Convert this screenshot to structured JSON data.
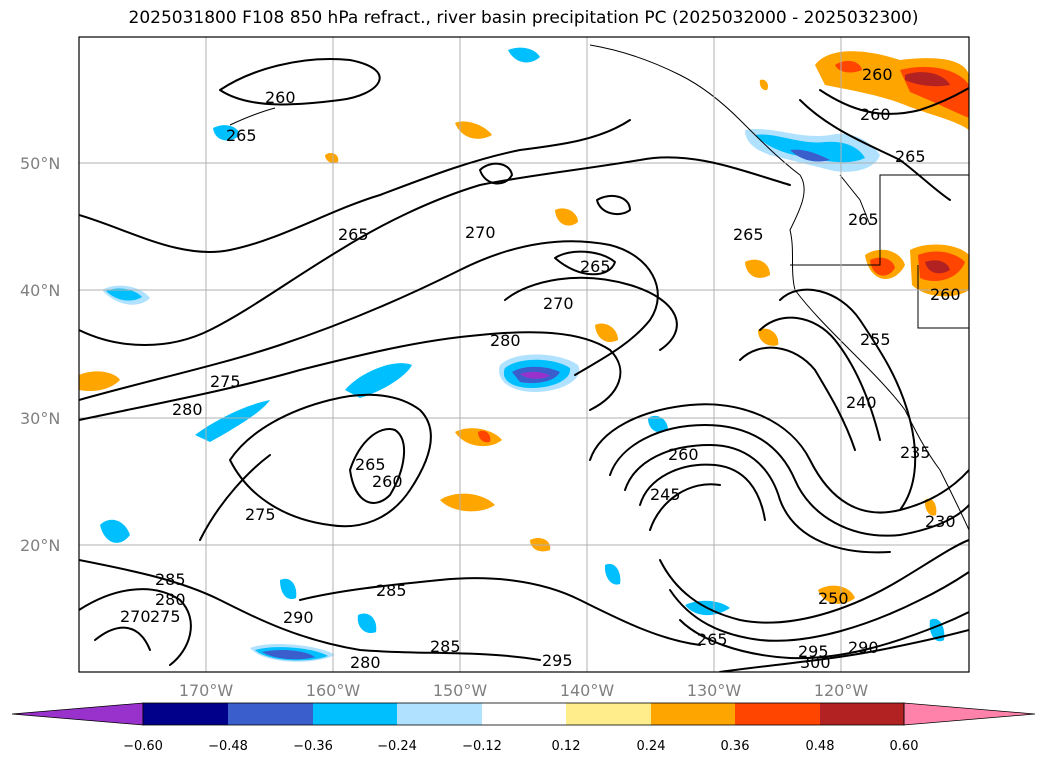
{
  "title": "2025031800 F108 850 hPa refract., river basin precipitation PC (2025032000 - 2025032300)",
  "axes": {
    "lat_labels": [
      "50°N",
      "40°N",
      "30°N",
      "20°N"
    ],
    "lon_labels": [
      "170°W",
      "160°W",
      "150°W",
      "140°W",
      "130°W",
      "120°W"
    ]
  },
  "colorbar": {
    "levels": [
      "−0.60",
      "−0.48",
      "−0.36",
      "−0.24",
      "−0.12",
      "0.12",
      "0.24",
      "0.36",
      "0.48",
      "0.60"
    ],
    "colors": [
      "#9932cc",
      "#00008b",
      "#3a5fcd",
      "#00bfff",
      "#b0e2ff",
      "#ffffff",
      "#ffec8b",
      "#ffa500",
      "#ff4500",
      "#b22222",
      "#ff82ab"
    ],
    "extend": "both"
  },
  "contour_labels": [
    "260",
    "265",
    "265",
    "270",
    "265",
    "265",
    "270",
    "280",
    "260",
    "275",
    "280",
    "265",
    "260",
    "275",
    "285",
    "280",
    "275",
    "270",
    "285",
    "290",
    "280",
    "285",
    "295",
    "265",
    "245",
    "260",
    "240",
    "235",
    "230",
    "250",
    "295",
    "300",
    "290",
    "260",
    "265",
    "255",
    "260",
    "265"
  ],
  "colors": {
    "grid": "#b0b0b0",
    "axis_label": "#808080"
  }
}
